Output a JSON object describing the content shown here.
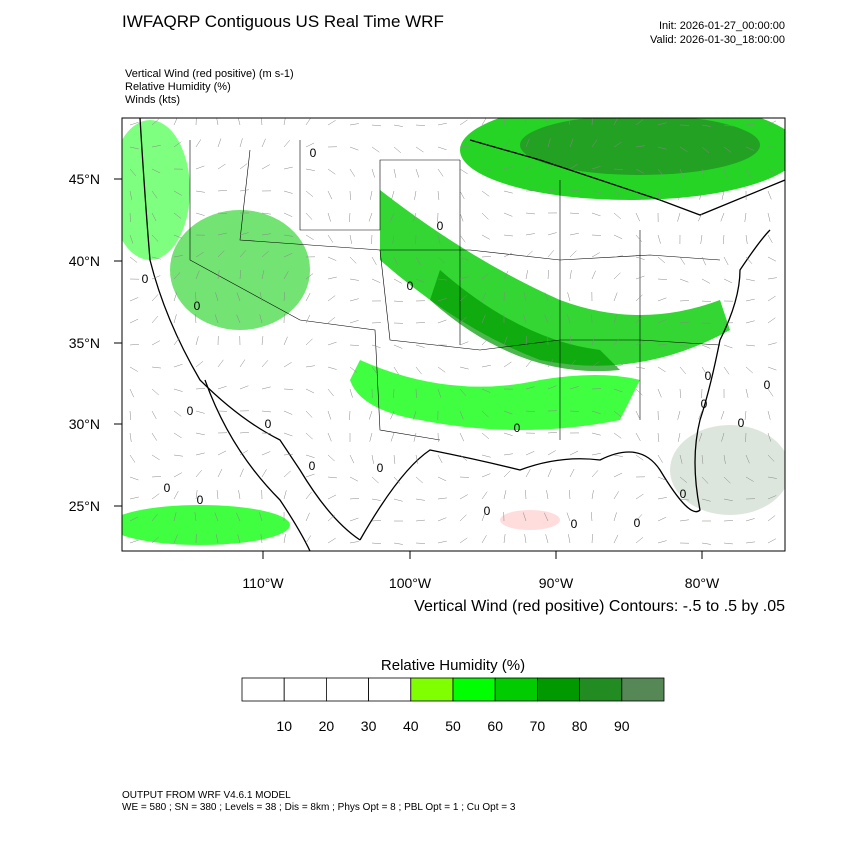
{
  "header": {
    "title": "IWFAQRP Contiguous US Real Time WRF",
    "init": "Init: 2026-01-27_00:00:00",
    "valid": "Valid: 2026-01-30_18:00:00"
  },
  "fields": [
    "Vertical Wind (red positive)   (m s-1)",
    "Relative Humidity   (%)",
    "Winds   (kts)"
  ],
  "map": {
    "lat_labels": [
      "45°N",
      "40°N",
      "35°N",
      "30°N",
      "25°N"
    ],
    "lon_labels": [
      "110°W",
      "100°W",
      "90°W",
      "80°W"
    ],
    "contour_note": "Vertical Wind (red positive) Contours: -.5 to .5 by .05",
    "contour_label": "0"
  },
  "colorbar": {
    "title": "Relative Humidity  (%)",
    "labels": [
      "10",
      "20",
      "30",
      "40",
      "50",
      "60",
      "70",
      "80",
      "90"
    ],
    "colors": [
      "#ffffff",
      "#ffffff",
      "#ffffff",
      "#ffffff",
      "#80ff00",
      "#00ff00",
      "#00cc00",
      "#009900",
      "#228b22",
      "#558855"
    ]
  },
  "footer": {
    "line1": "OUTPUT FROM WRF V4.6.1 MODEL",
    "line2": "WE = 580 ; SN = 380 ; Levels = 38 ; Dis = 8km ; Phys Opt = 8 ; PBL Opt = 1 ; Cu Opt = 3"
  }
}
